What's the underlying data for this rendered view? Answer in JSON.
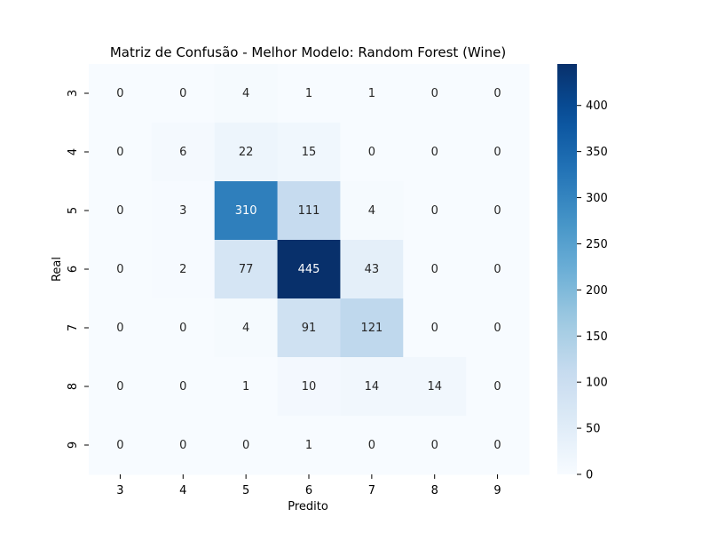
{
  "chart_data": {
    "type": "heatmap",
    "title": "Matriz de Confusão - Melhor Modelo: Random Forest (Wine)",
    "xlabel": "Predito",
    "ylabel": "Real",
    "x_categories": [
      "3",
      "4",
      "5",
      "6",
      "7",
      "8",
      "9"
    ],
    "y_categories": [
      "3",
      "4",
      "5",
      "6",
      "7",
      "8",
      "9"
    ],
    "values": [
      [
        0,
        0,
        4,
        1,
        1,
        0,
        0
      ],
      [
        0,
        6,
        22,
        15,
        0,
        0,
        0
      ],
      [
        0,
        3,
        310,
        111,
        4,
        0,
        0
      ],
      [
        0,
        2,
        77,
        445,
        43,
        0,
        0
      ],
      [
        0,
        0,
        4,
        91,
        121,
        0,
        0
      ],
      [
        0,
        0,
        1,
        10,
        14,
        14,
        0
      ],
      [
        0,
        0,
        0,
        1,
        0,
        0,
        0
      ]
    ],
    "colormap": "Blues",
    "color_min": "#f7fbff",
    "color_max": "#08306b",
    "vmin": 0,
    "vmax": 445,
    "colorbar_ticks": [
      "0",
      "50",
      "100",
      "150",
      "200",
      "250",
      "300",
      "350",
      "400"
    ],
    "annotations": true
  }
}
